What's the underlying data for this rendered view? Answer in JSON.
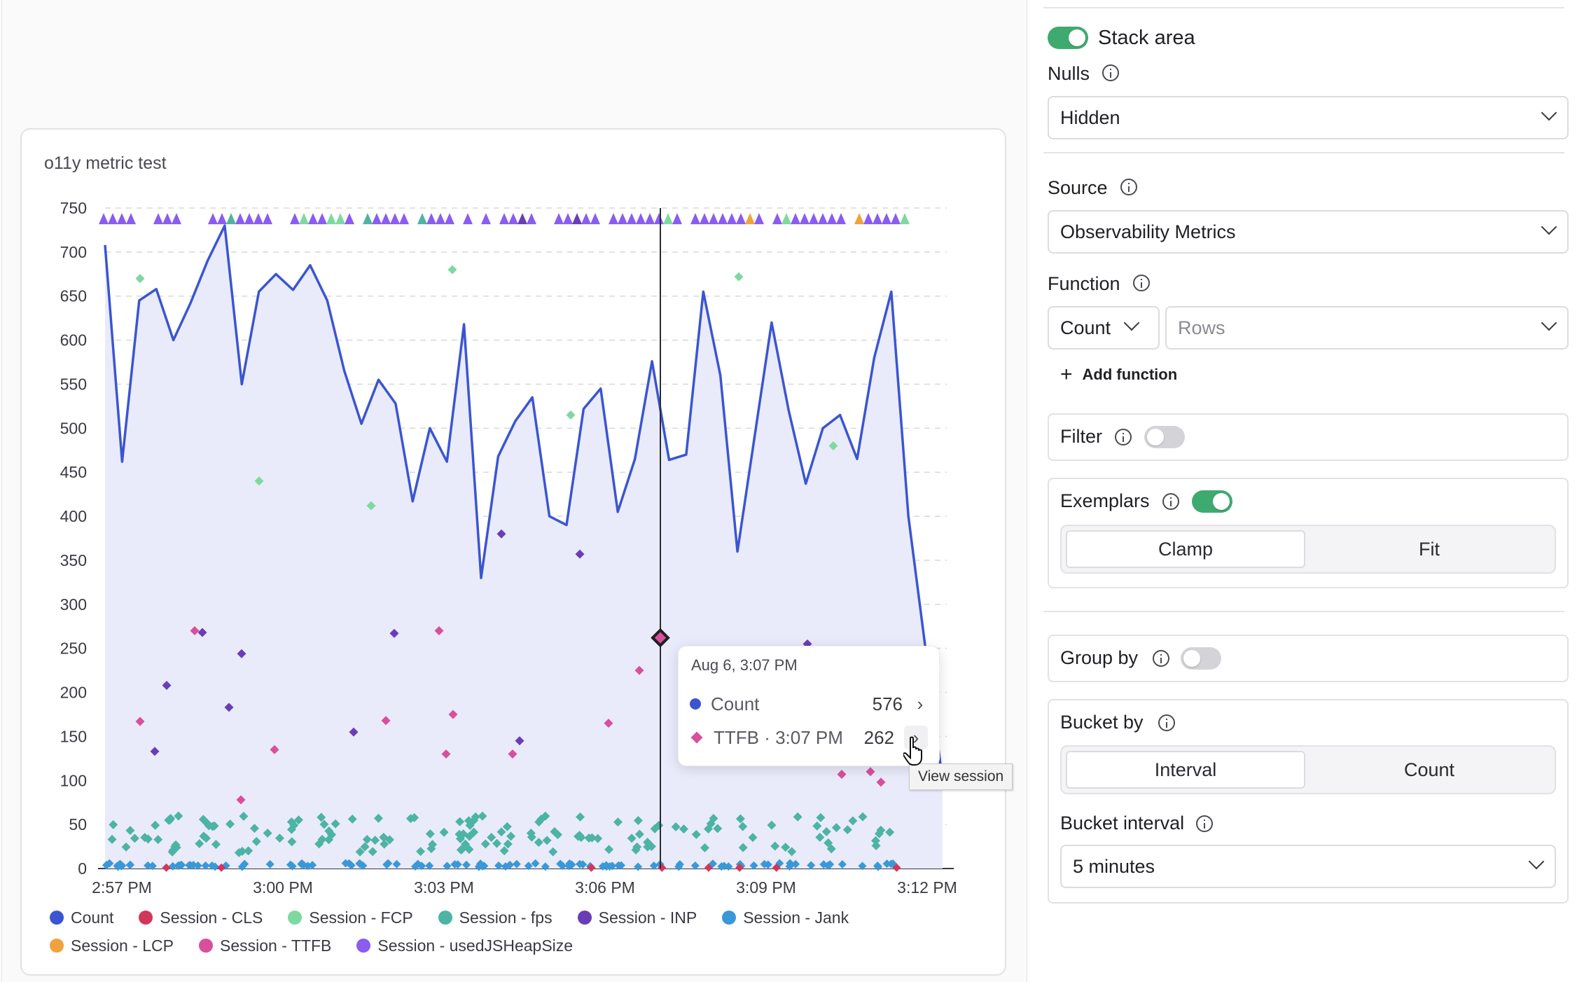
{
  "chart_card": {
    "title": "o11y metric test"
  },
  "chart_data": {
    "type": "area",
    "y_ticks": [
      "750",
      "700",
      "650",
      "600",
      "550",
      "500",
      "450",
      "400",
      "350",
      "300",
      "250",
      "200",
      "150",
      "100",
      "50",
      "0"
    ],
    "x_ticks": [
      "2:57 PM",
      "3:00 PM",
      "3:03 PM",
      "3:06 PM",
      "3:09 PM",
      "3:12 PM"
    ],
    "ylim": [
      0,
      750
    ],
    "grid": true,
    "legend_placement": "bottom",
    "series": [
      {
        "name": "Count",
        "color": "#3b55d1",
        "type": "area",
        "values": [
          708,
          462,
          645,
          658,
          600,
          642,
          690,
          730,
          550,
          655,
          675,
          657,
          685,
          645,
          565,
          505,
          555,
          528,
          417,
          500,
          462,
          618,
          330,
          468,
          508,
          535,
          400,
          390,
          522,
          545,
          405,
          465,
          576,
          464,
          470,
          655,
          560,
          360,
          490,
          620,
          520,
          437,
          500,
          515,
          465,
          580,
          655,
          400,
          250,
          100
        ]
      }
    ],
    "exemplar_series": [
      {
        "name": "Session - CLS",
        "color": "#d4365a"
      },
      {
        "name": "Session - FCP",
        "color": "#7ed9a0",
        "values": [
          670,
          680,
          440,
          412,
          515,
          672,
          480
        ]
      },
      {
        "name": "Session - fps",
        "color": "#4db3a5"
      },
      {
        "name": "Session - INP",
        "color": "#6a3db8",
        "values": [
          208,
          133,
          183,
          268,
          244,
          155,
          267,
          380,
          145,
          357,
          255
        ]
      },
      {
        "name": "Session - Jank",
        "color": "#3a98d8"
      },
      {
        "name": "Session - LCP",
        "color": "#f0a23c"
      },
      {
        "name": "Session - TTFB",
        "color": "#d94f9b",
        "values": [
          167,
          270,
          78,
          135,
          168,
          270,
          175,
          130,
          130,
          225,
          165,
          107,
          110,
          98
        ]
      },
      {
        "name": "Session - usedJSHeapSize",
        "color": "#8a5cf0"
      }
    ],
    "crosshair_x": "3:07 PM"
  },
  "legend": [
    {
      "label": "Count",
      "color": "#3b55d1"
    },
    {
      "label": "Session - CLS",
      "color": "#d4365a"
    },
    {
      "label": "Session - FCP",
      "color": "#7ed9a0"
    },
    {
      "label": "Session - fps",
      "color": "#4db3a5"
    },
    {
      "label": "Session - INP",
      "color": "#6a3db8"
    },
    {
      "label": "Session - Jank",
      "color": "#3a98d8"
    },
    {
      "label": "Session - LCP",
      "color": "#f0a23c"
    },
    {
      "label": "Session - TTFB",
      "color": "#d94f9b"
    },
    {
      "label": "Session - usedJSHeapSize",
      "color": "#8a5cf0"
    }
  ],
  "tooltip": {
    "time": "Aug 6, 3:07 PM",
    "rows": [
      {
        "label": "Count",
        "value": "576",
        "color": "#3b55d1"
      },
      {
        "label": "TTFB · 3:07 PM",
        "value": "262",
        "color": "#d94f9b"
      }
    ],
    "hint": "View session"
  },
  "panel": {
    "stack_area": {
      "label": "Stack area",
      "on": true
    },
    "nulls": {
      "label": "Nulls",
      "value": "Hidden"
    },
    "source": {
      "label": "Source",
      "value": "Observability Metrics"
    },
    "function": {
      "label": "Function",
      "fn": "Count",
      "field_placeholder": "Rows",
      "add_label": "Add function"
    },
    "filter": {
      "label": "Filter",
      "on": false
    },
    "exemplars": {
      "label": "Exemplars",
      "on": true,
      "options": [
        "Clamp",
        "Fit"
      ],
      "selected": "Clamp"
    },
    "group_by": {
      "label": "Group by",
      "on": false
    },
    "bucket_by": {
      "label": "Bucket by",
      "options": [
        "Interval",
        "Count"
      ],
      "selected": "Interval"
    },
    "bucket_interval": {
      "label": "Bucket interval",
      "value": "5 minutes"
    }
  }
}
